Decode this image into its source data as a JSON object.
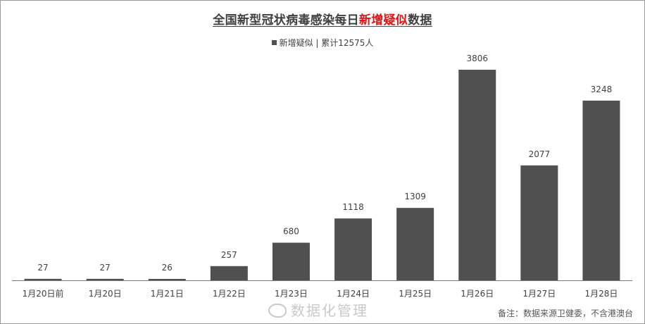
{
  "title": {
    "part1": "全国新型冠状病毒感染每日",
    "highlight": "新增疑似",
    "part2": "数据"
  },
  "legend": {
    "label": "新增疑似 | 累计12575人"
  },
  "footer": {
    "note": "备注：数据来源卫健委，不含港澳台",
    "watermark": "数据化管理"
  },
  "colors": {
    "bar": "#505050",
    "highlight": "#e01414",
    "text": "#404040"
  },
  "chart_data": {
    "type": "bar",
    "title": "全国新型冠状病毒感染每日新增疑似数据",
    "categories": [
      "1月20日前",
      "1月20日",
      "1月21日",
      "1月22日",
      "1月23日",
      "1月24日",
      "1月25日",
      "1月26日",
      "1月27日",
      "1月28日"
    ],
    "series": [
      {
        "name": "新增疑似",
        "values": [
          27,
          27,
          26,
          257,
          680,
          1118,
          1309,
          3806,
          2077,
          3248
        ]
      }
    ],
    "xlabel": "",
    "ylabel": "",
    "ylim": [
      0,
      3806
    ],
    "grid": false,
    "legend_position": "top-center",
    "data_labels": true
  }
}
